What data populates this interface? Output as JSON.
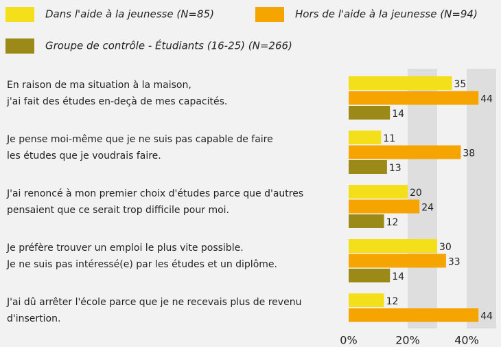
{
  "chart_data": {
    "type": "bar",
    "orientation": "horizontal",
    "categories": [
      [
        "En raison de ma situation à la maison,",
        "j'ai fait des études en-deçà de mes capacités."
      ],
      [
        "Je pense moi-même que je ne suis pas capable de faire",
        "les études que je voudrais faire."
      ],
      [
        "J'ai renoncé à mon premier choix d'études parce que d'autres",
        "pensaient que ce serait trop difficile pour moi."
      ],
      [
        "Je préfère trouver un emploi le plus vite possible.",
        "Je ne suis pas intéressé(e) par les études et un diplôme."
      ],
      [
        "J'ai dû arrêter l'école parce que je ne recevais plus de revenu",
        "d'insertion."
      ]
    ],
    "series": [
      {
        "name": "Dans l'aide à la jeunesse (N=85)",
        "color": "#f4df1b",
        "values": [
          35,
          11,
          20,
          30,
          12
        ]
      },
      {
        "name": "Hors de l'aide à la jeunesse (N=94)",
        "color": "#f6a400",
        "values": [
          44,
          38,
          24,
          33,
          44
        ]
      },
      {
        "name": "Groupe de contrôle - Étudiants (16-25) (N=266)",
        "color": "#9c8a18",
        "values": [
          14,
          13,
          12,
          14,
          null
        ]
      }
    ],
    "xlim": [
      0,
      50
    ],
    "xticks": [
      {
        "value": 0,
        "label": "0%"
      },
      {
        "value": 20,
        "label": "20%"
      },
      {
        "value": 40,
        "label": "40%"
      }
    ],
    "grid": true
  }
}
